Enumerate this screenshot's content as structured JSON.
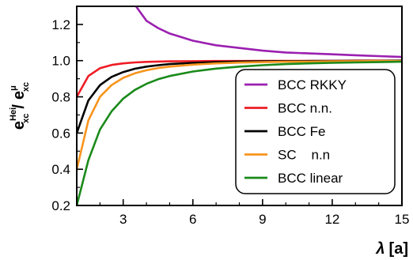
{
  "chart_data": {
    "type": "line",
    "title": "",
    "xlabel": {
      "symbol": "λ",
      "unit": "[a]"
    },
    "ylabel": {
      "num": "e",
      "num_sub": "xc",
      "num_sup": "Hei",
      "slash": "/",
      "den": "e",
      "den_sub": "xc",
      "den_sup": "μ"
    },
    "xlim": [
      1,
      15
    ],
    "ylim": [
      0.2,
      1.3
    ],
    "x_ticks": [
      3,
      6,
      9,
      12,
      15
    ],
    "x_tick_labels": [
      "3",
      "6",
      "9",
      "12",
      "15"
    ],
    "y_ticks": [
      0.2,
      0.4,
      0.6,
      0.8,
      1.0,
      1.2
    ],
    "y_tick_labels": [
      "0.2",
      "0.4",
      "0.6",
      "0.8",
      "1.0",
      "1.2"
    ],
    "grid": false,
    "legend_position": "bottom-right",
    "x": [
      1,
      1.5,
      2,
      2.5,
      3,
      3.5,
      4,
      4.5,
      5,
      6,
      7,
      8,
      9,
      10,
      11,
      12,
      13,
      14,
      15
    ],
    "series": [
      {
        "name": "BCC RKKY",
        "color": "#9b1fb0",
        "x": [
          3.55,
          4,
          4.5,
          5,
          6,
          7,
          8,
          9,
          10,
          11,
          12,
          13,
          14,
          15
        ],
        "values": [
          1.3,
          1.22,
          1.18,
          1.15,
          1.11,
          1.085,
          1.07,
          1.055,
          1.045,
          1.04,
          1.035,
          1.03,
          1.025,
          1.02
        ]
      },
      {
        "name": "BCC n.n.",
        "color": "#ee1c25",
        "values": [
          0.8,
          0.915,
          0.958,
          0.976,
          0.985,
          0.99,
          0.993,
          0.995,
          0.996,
          0.997,
          0.998,
          0.998,
          0.999,
          0.999,
          0.999,
          0.999,
          1.0,
          1.0,
          1.0
        ]
      },
      {
        "name": "BCC Fe",
        "color": "#000000",
        "values": [
          0.6,
          0.78,
          0.865,
          0.91,
          0.937,
          0.955,
          0.967,
          0.975,
          0.981,
          0.988,
          0.992,
          0.995,
          0.996,
          0.997,
          0.998,
          0.999,
          0.999,
          0.999,
          1.0
        ]
      },
      {
        "name": "SC    n.n",
        "color": "#f7941d",
        "values": [
          0.4,
          0.67,
          0.8,
          0.865,
          0.905,
          0.93,
          0.947,
          0.959,
          0.967,
          0.978,
          0.985,
          0.989,
          0.992,
          0.994,
          0.995,
          0.996,
          0.997,
          0.998,
          0.998
        ]
      },
      {
        "name": "BCC linear",
        "color": "#1a8a1a",
        "values": [
          0.2,
          0.45,
          0.62,
          0.72,
          0.79,
          0.838,
          0.872,
          0.897,
          0.915,
          0.94,
          0.956,
          0.967,
          0.975,
          0.981,
          0.985,
          0.988,
          0.99,
          0.992,
          0.994
        ]
      }
    ]
  }
}
